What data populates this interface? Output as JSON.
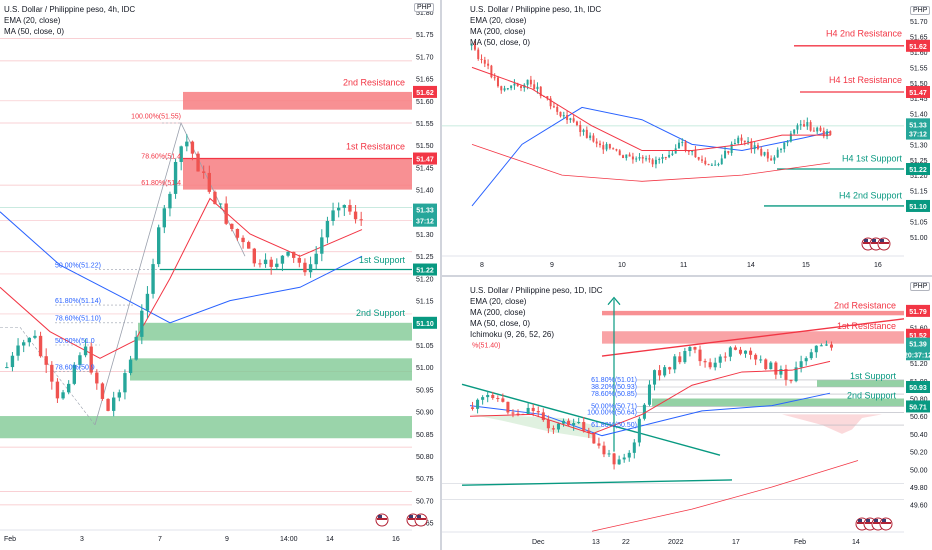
{
  "panels": [
    {
      "id": "left",
      "title": "U.S. Dollar / Philippine peso, 4h, IDC",
      "indicators": [
        "EMA (20, close)",
        "MA (50, close, 0)"
      ],
      "currency": "PHP",
      "xticks": [
        "Feb",
        "3",
        "7",
        "9",
        "14:00",
        "14",
        "16"
      ],
      "yticks": [
        "51.80",
        "51.75",
        "51.70",
        "51.65",
        "51.60",
        "51.55",
        "51.50",
        "51.45",
        "51.40",
        "51.35",
        "51.30",
        "51.25",
        "51.20",
        "51.15",
        "51.10",
        "51.05",
        "51.00",
        "50.95",
        "50.90",
        "50.85",
        "50.80",
        "50.75",
        "50.70",
        "50.65"
      ],
      "labels": {
        "r2": "2nd Resistance",
        "r1": "1st Resistance",
        "s1": "1st Support",
        "s2": "2nd Support",
        "fib100": "100.00%(51.55)",
        "fib786": "78.60%(51.4",
        "fib618": "61.80%(51.4",
        "fib50": "50.00%(51.22)",
        "fib618b": "61.80%(51.14)",
        "fib786b": "78.60%(51.10)",
        "fib50b": "50.00%(51.0",
        "fib786c": "78.60%(50.9"
      },
      "badges": {
        "r2": "51.62",
        "r1": "51.47",
        "price": "51.33",
        "timer": "37:12",
        "s1": "51.22",
        "s2": "51.10"
      },
      "colors": {
        "resistance": "#f23645",
        "support": "#089981",
        "price": "#26a69a",
        "ema": "#f23645",
        "ma50": "#2962ff"
      }
    },
    {
      "id": "right-top",
      "title": "U.S. Dollar / Philippine peso, 1h, IDC",
      "indicators": [
        "EMA (20, close)",
        "MA (200, close)",
        "MA (50, close, 0)"
      ],
      "currency": "PHP",
      "xticks": [
        "8",
        "9",
        "10",
        "11",
        "14",
        "15",
        "16"
      ],
      "yticks": [
        "51.70",
        "51.65",
        "51.60",
        "51.55",
        "51.50",
        "51.45",
        "51.40",
        "51.35",
        "51.30",
        "51.25",
        "51.20",
        "51.15",
        "51.10",
        "51.05",
        "51.00"
      ],
      "labels": {
        "r2": "H4 2nd Resistance",
        "r1": "H4 1st Resistance",
        "s1": "H4 1st Support",
        "s2": "H4 2nd Support"
      },
      "badges": {
        "r2": "51.62",
        "r1": "51.47",
        "price": "51.33",
        "timer": "37:12",
        "s1": "51.22",
        "s2": "51.10"
      }
    },
    {
      "id": "right-bottom",
      "title": "U.S. Dollar / Philippine peso, 1D, IDC",
      "indicators": [
        "EMA (20, close)",
        "MA (200, close)",
        "MA (50, close, 0)",
        "Ichimoku (9, 26, 52, 26)"
      ],
      "currency": "PHP",
      "xticks": [
        "Dec",
        "13",
        "22",
        "2022",
        "17",
        "Feb",
        "14"
      ],
      "yticks": [
        "51.80",
        "51.60",
        "51.40",
        "51.20",
        "51.00",
        "50.80",
        "50.60",
        "50.40",
        "50.20",
        "50.00",
        "49.80",
        "49.60"
      ],
      "labels": {
        "r2": "2nd Resistance",
        "r1": "1st Resistance",
        "s1": "1st Support",
        "s2": "2nd Support",
        "fib618": "61.80%(51.01)",
        "fib382": "38.20%(50.93)",
        "fib786": "78.60%(50.85)",
        "fib50": "50.00%(50.71)",
        "fib100": "100.00%(50.64)",
        "fib618b": "61.80%(50.50)",
        "fibtop": "%(51.40)"
      },
      "badges": {
        "r2": "51.79",
        "r1": "51.52",
        "price": "51.39",
        "timer": "20:37:12",
        "s1": "50.93",
        "s2": "50.71"
      }
    }
  ]
}
